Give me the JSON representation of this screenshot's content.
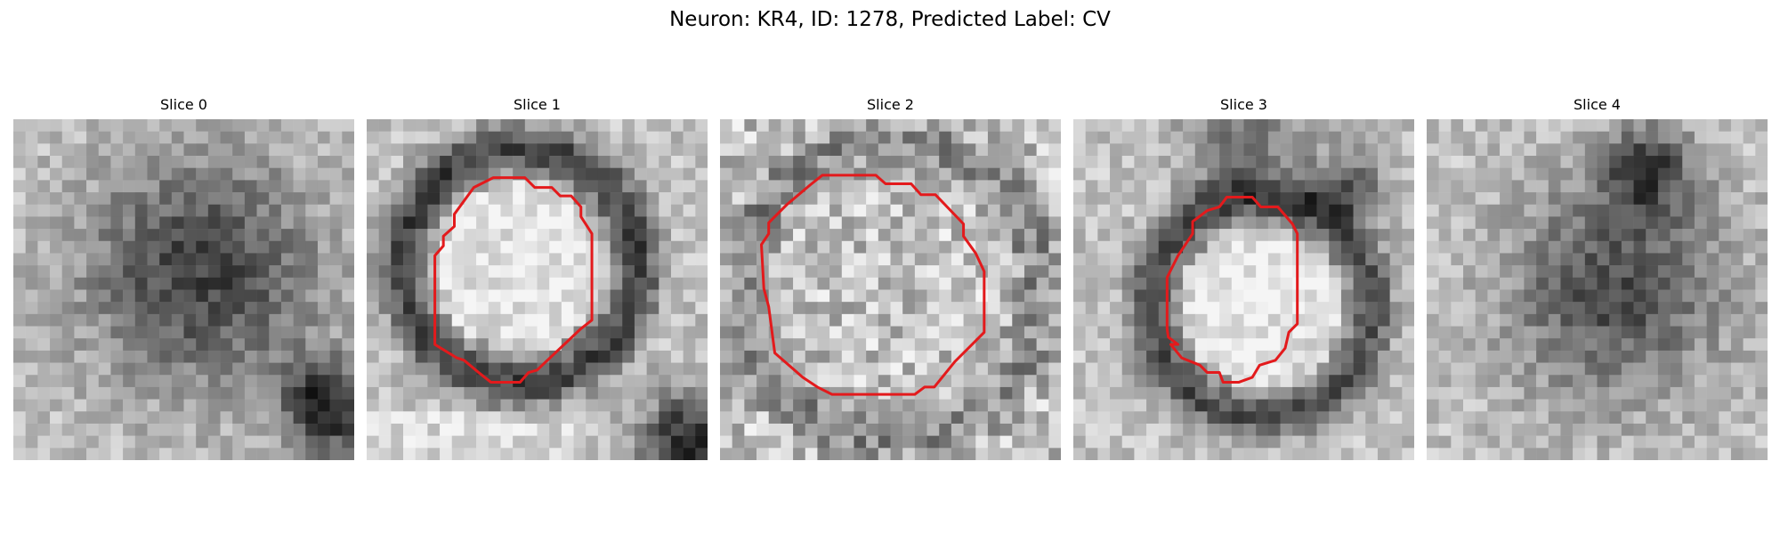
{
  "figure": {
    "title": "Neuron: KR4, ID: 1278, Predicted Label: CV"
  },
  "colors": {
    "contour": "#e31a1c",
    "background": "#ffffff"
  },
  "panels": [
    {
      "label": "Slice 0",
      "has_contour": false,
      "seed": 11,
      "dark_blobs": [
        [
          0.55,
          0.45,
          0.38,
          0.55
        ],
        [
          0.92,
          0.85,
          0.15,
          0.7
        ]
      ]
    },
    {
      "label": "Slice 1",
      "has_contour": true,
      "seed": 23,
      "ring": [
        0.45,
        0.43,
        0.3,
        0.55
      ],
      "inner_light": true
    },
    {
      "label": "Slice 2",
      "has_contour": true,
      "seed": 37,
      "ring": [
        0.5,
        0.5,
        0.38,
        0.25
      ],
      "inner_light": false
    },
    {
      "label": "Slice 3",
      "has_contour": true,
      "seed": 41,
      "ring": [
        0.55,
        0.55,
        0.28,
        0.5
      ],
      "inner_light": true
    },
    {
      "label": "Slice 4",
      "has_contour": false,
      "seed": 53,
      "dark_blobs": [
        [
          0.55,
          0.5,
          0.35,
          0.5
        ],
        [
          0.65,
          0.15,
          0.15,
          0.5
        ]
      ]
    }
  ]
}
